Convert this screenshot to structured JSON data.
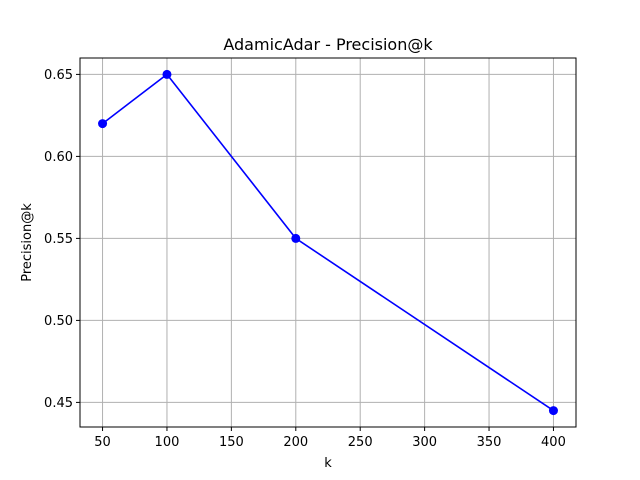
{
  "chart_data": {
    "type": "line",
    "title": "AdamicAdar - Precision@k",
    "xlabel": "k",
    "ylabel": "Precision@k",
    "x": [
      50,
      100,
      200,
      400
    ],
    "series": [
      {
        "values": [
          0.62,
          0.65,
          0.55,
          0.445
        ],
        "color": "#0000ff",
        "marker": "circle"
      }
    ],
    "xlim": [
      32.5,
      417.5
    ],
    "ylim": [
      0.435,
      0.66
    ],
    "xticks": [
      50,
      100,
      150,
      200,
      250,
      300,
      350,
      400
    ],
    "xtick_labels": [
      "50",
      "100",
      "150",
      "200",
      "250",
      "300",
      "350",
      "400"
    ],
    "yticks": [
      0.45,
      0.5,
      0.55,
      0.6,
      0.65
    ],
    "ytick_labels": [
      "0.45",
      "0.50",
      "0.55",
      "0.60",
      "0.65"
    ],
    "grid": true
  }
}
